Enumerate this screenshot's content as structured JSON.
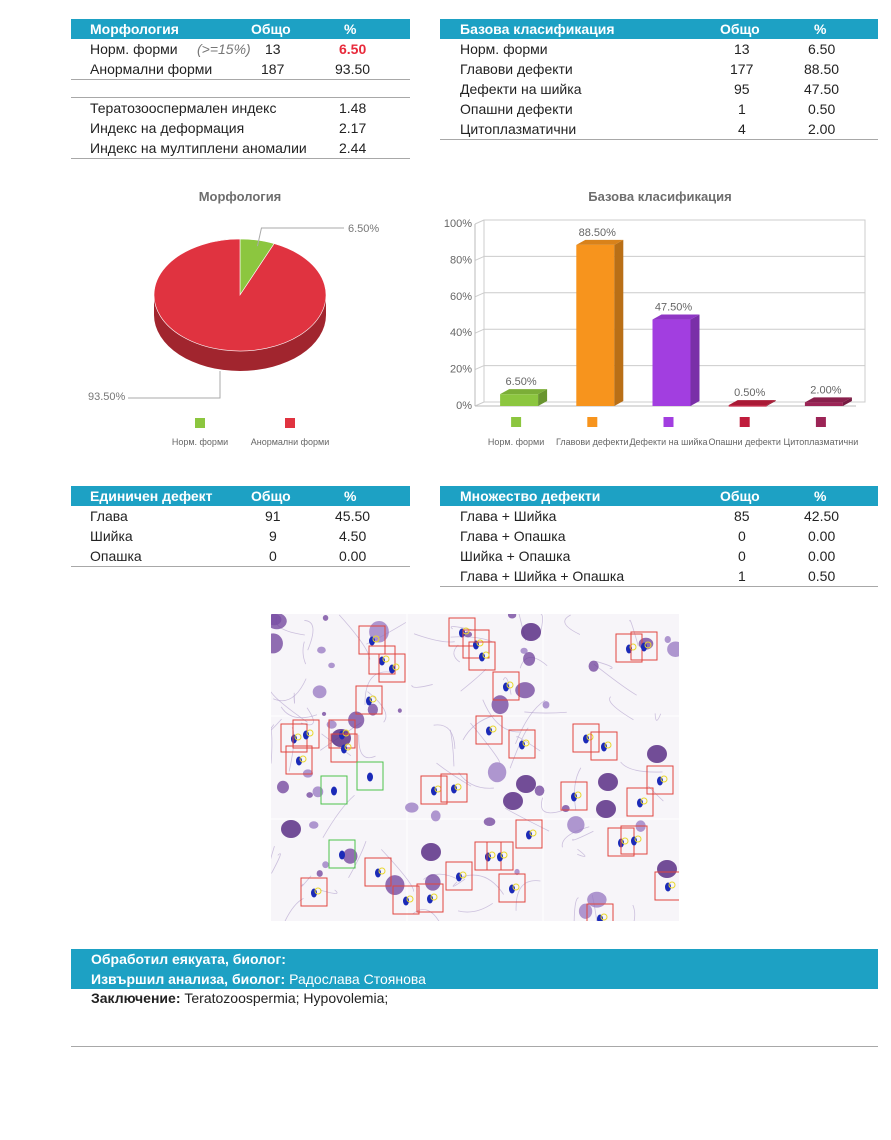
{
  "morph_table": {
    "headers": [
      "Морфология",
      "Общо",
      "%"
    ],
    "rows": [
      {
        "label": "Норм. форми",
        "note": "(>=15%)",
        "total": "13",
        "pct": "6.50"
      },
      {
        "label": "Анормални форми",
        "total": "187",
        "pct": "93.50"
      }
    ]
  },
  "indices": [
    {
      "label": "Тератозооспермален индекс",
      "value": "1.48"
    },
    {
      "label": "Индекс на деформация",
      "value": "2.17"
    },
    {
      "label": "Индекс на мултиплени аномалии",
      "value": "2.44"
    }
  ],
  "basic_table": {
    "headers": [
      "Базова класификация",
      "Общо",
      "%"
    ],
    "rows": [
      {
        "label": "Норм. форми",
        "total": "13",
        "pct": "6.50"
      },
      {
        "label": "Главови дефекти",
        "total": "177",
        "pct": "88.50"
      },
      {
        "label": "Дефекти на шийка",
        "total": "95",
        "pct": "47.50"
      },
      {
        "label": "Опашни дефекти",
        "total": "1",
        "pct": "0.50"
      },
      {
        "label": "Цитоплазматични",
        "total": "4",
        "pct": "2.00"
      }
    ]
  },
  "single_table": {
    "headers": [
      "Единичен дефект",
      "Общо",
      "%"
    ],
    "rows": [
      {
        "label": "Глава",
        "total": "91",
        "pct": "45.50"
      },
      {
        "label": "Шийка",
        "total": "9",
        "pct": "4.50"
      },
      {
        "label": "Опашка",
        "total": "0",
        "pct": "0.00"
      }
    ]
  },
  "multi_table": {
    "headers": [
      "Множество дефекти",
      "Общо",
      "%"
    ],
    "rows": [
      {
        "label": "Глава + Шийка",
        "total": "85",
        "pct": "42.50"
      },
      {
        "label": "Глава + Опашка",
        "total": "0",
        "pct": "0.00"
      },
      {
        "label": "Шийка + Опашка",
        "total": "0",
        "pct": "0.00"
      },
      {
        "label": "Глава + Шийка + Опашка",
        "total": "1",
        "pct": "0.50"
      }
    ]
  },
  "footer": {
    "processed_label": "Обработил еякуата, биолог:",
    "processed_value": "",
    "analysis_label": "Извършил анализа, биолог:",
    "analysis_value": "Радослава Стоянова",
    "conclusion_label": "Заключение:",
    "conclusion_value": "Teratozoospermia; Hypovolemia;"
  },
  "colors": {
    "header_bg": "#1da1c4",
    "highlight_red": "#e8293a",
    "green": "#8cc63f",
    "red": "#e03340",
    "orange": "#f7941d",
    "purple": "#a23ee0",
    "crimson": "#c01c3c",
    "maroon": "#9c2456"
  },
  "chart_data": [
    {
      "type": "pie",
      "title": "Морфология",
      "categories": [
        "Норм. форми",
        "Анормални форми"
      ],
      "values": [
        6.5,
        93.5
      ],
      "labels": [
        "6.50%",
        "93.50%"
      ],
      "colors": [
        "#8cc63f",
        "#e03340"
      ],
      "legend": "bottom"
    },
    {
      "type": "bar",
      "title": "Базова класификация",
      "categories": [
        "Норм. форми",
        "Главови дефекти",
        "Дефекти на шийка",
        "Опашни дефекти",
        "Цитоплазматични"
      ],
      "values": [
        6.5,
        88.5,
        47.5,
        0.5,
        2.0
      ],
      "labels": [
        "6.50%",
        "88.50%",
        "47.50%",
        "0.50%",
        "2.00%"
      ],
      "colors": [
        "#8cc63f",
        "#f7941d",
        "#a23ee0",
        "#c01c3c",
        "#9c2456"
      ],
      "yticks": [
        "0%",
        "20%",
        "40%",
        "60%",
        "80%",
        "100%"
      ],
      "ylim": [
        0,
        100
      ],
      "grid": true,
      "legend": "bottom"
    }
  ]
}
